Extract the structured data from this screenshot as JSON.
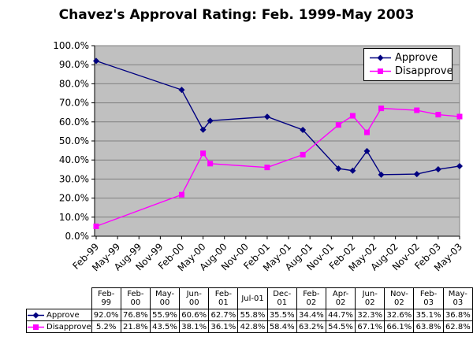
{
  "title": "Chavez's Approval Rating: Feb. 1999-May 2003",
  "colors": {
    "approve": "#000080",
    "disapprove": "#FF00FF",
    "plot_bg": "#C0C0C0",
    "gridline": "#808080",
    "axis": "#000000",
    "background": "#FFFFFF"
  },
  "chart_data": {
    "type": "line",
    "title": "Chavez's Approval Rating: Feb. 1999-May 2003",
    "xlabel": "",
    "ylabel": "",
    "ylim": [
      0,
      100
    ],
    "grid": "horizontal",
    "legend_position": "top-right",
    "plot_background": "#C0C0C0",
    "categories": [
      "Feb-99",
      "Feb-00",
      "May-00",
      "Jun-00",
      "Feb-01",
      "Jul-01",
      "Dec-01",
      "Feb-02",
      "Apr-02",
      "Jun-02",
      "Nov-02",
      "Feb-03",
      "May-03"
    ],
    "x_months_since_feb99": [
      0,
      12,
      15,
      16,
      24,
      29,
      34,
      36,
      38,
      40,
      45,
      48,
      51
    ],
    "x_tick_interval_months": 3,
    "x_tick_labels": [
      "Feb-99",
      "May-99",
      "Aug-99",
      "Nov-99",
      "Feb-00",
      "May-00",
      "Aug-00",
      "Nov-00",
      "Feb-01",
      "May-01",
      "Aug-01",
      "Nov-01",
      "Feb-02",
      "May-02",
      "Aug-02",
      "Nov-02",
      "Feb-03",
      "May-03"
    ],
    "y_tick_labels": [
      "0.0%",
      "10.0%",
      "20.0%",
      "30.0%",
      "40.0%",
      "50.0%",
      "60.0%",
      "70.0%",
      "80.0%",
      "90.0%",
      "100.0%"
    ],
    "series": [
      {
        "name": "Approve",
        "marker": "diamond",
        "color": "#000080",
        "values": [
          92.0,
          76.8,
          55.9,
          60.6,
          62.7,
          55.8,
          35.5,
          34.4,
          44.7,
          32.3,
          32.6,
          35.1,
          36.8
        ]
      },
      {
        "name": "Disapprove",
        "marker": "square",
        "color": "#FF00FF",
        "values": [
          5.2,
          21.8,
          43.5,
          38.1,
          36.1,
          42.8,
          58.4,
          63.2,
          54.5,
          67.1,
          66.1,
          63.8,
          62.8
        ]
      }
    ]
  },
  "table": {
    "headers": [
      "Feb-\n99",
      "Feb-\n00",
      "May-\n00",
      "Jun-\n00",
      "Feb-\n01",
      "Jul-01",
      "Dec-\n01",
      "Feb-\n02",
      "Apr-\n02",
      "Jun-\n02",
      "Nov-\n02",
      "Feb-\n03",
      "May-\n03"
    ],
    "rows": [
      {
        "label": "Approve",
        "marker": "diamond",
        "color": "#000080",
        "values": [
          "92.0%",
          "76.8%",
          "55.9%",
          "60.6%",
          "62.7%",
          "55.8%",
          "35.5%",
          "34.4%",
          "44.7%",
          "32.3%",
          "32.6%",
          "35.1%",
          "36.8%"
        ]
      },
      {
        "label": "Disapprove",
        "marker": "square",
        "color": "#FF00FF",
        "values": [
          "5.2%",
          "21.8%",
          "43.5%",
          "38.1%",
          "36.1%",
          "42.8%",
          "58.4%",
          "63.2%",
          "54.5%",
          "67.1%",
          "66.1%",
          "63.8%",
          "62.8%"
        ]
      }
    ]
  }
}
